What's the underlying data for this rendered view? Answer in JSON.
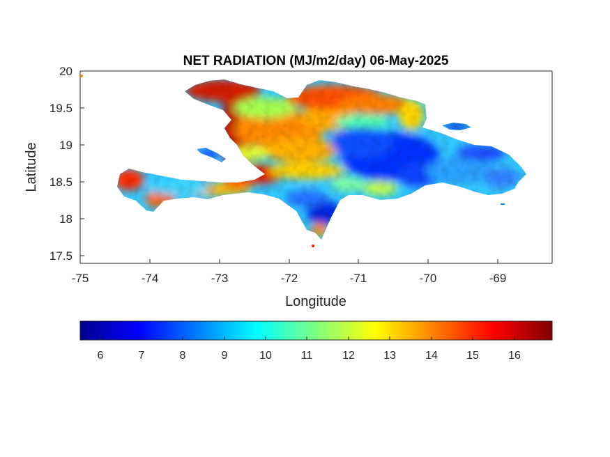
{
  "title": "NET RADIATION (MJ/m2/day) 06-May-2025",
  "x_axis": {
    "label": "Longitude",
    "ticks": [
      "-75",
      "-74",
      "-73",
      "-72",
      "-71",
      "-70",
      "-69"
    ]
  },
  "y_axis": {
    "label": "Latitude",
    "ticks": [
      "20",
      "19.5",
      "19",
      "18.5",
      "18",
      "17.5"
    ]
  },
  "colorbar": {
    "ticks": [
      "6",
      "7",
      "8",
      "9",
      "10",
      "11",
      "12",
      "13",
      "14",
      "15",
      "16"
    ],
    "colormap": "jet",
    "colors": [
      "#00008f",
      "#0000ff",
      "#00ffff",
      "#ffff00",
      "#ff0000",
      "#800000"
    ]
  },
  "chart_data": {
    "type": "heatmap",
    "title": "NET RADIATION (MJ/m2/day) 06-May-2025",
    "xlabel": "Longitude",
    "ylabel": "Latitude",
    "xlim": [
      -75,
      -68.2
    ],
    "ylim": [
      17.4,
      20
    ],
    "color_range": [
      5.5,
      16.9
    ],
    "region": "Hispaniola",
    "grid": false,
    "colorbar_position": "bottom",
    "value_summary": {
      "northwest_coast_haiti": 15.5,
      "southwest_peninsula_coast": 14.5,
      "southwest_peninsula_interior": 9.5,
      "central_haiti_band": 13.5,
      "northern_dominican_coast": 14.5,
      "central_dominican_interior": 7.0,
      "eastern_dominican": 8.5,
      "southern_dominican_coast": 11.5
    }
  }
}
